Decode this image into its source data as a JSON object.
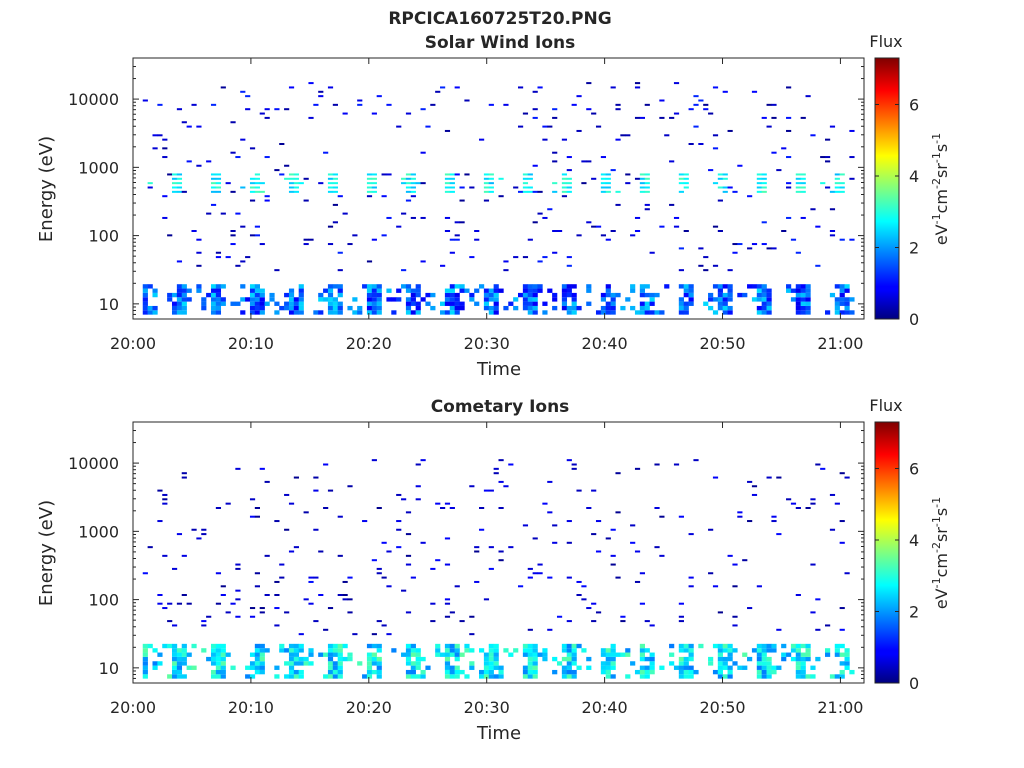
{
  "figure": {
    "title": "RPCICA160725T20.PNG"
  },
  "chart_data": [
    {
      "type": "heatmap",
      "title": "Solar Wind Ions",
      "xlabel": "Time",
      "ylabel": "Energy (eV)",
      "x_tick_labels": [
        "20:00",
        "20:10",
        "20:20",
        "20:30",
        "20:40",
        "20:50",
        "21:00"
      ],
      "x_tick_minutes": [
        0,
        10,
        20,
        30,
        40,
        50,
        60
      ],
      "xlim_minutes": [
        0,
        62
      ],
      "y_scale": "log",
      "y_tick_labels": [
        "10",
        "100",
        "1000",
        "10000"
      ],
      "y_tick_values": [
        10,
        100,
        1000,
        10000
      ],
      "ylim": [
        6,
        40000
      ],
      "colorbar": {
        "label": "Flux",
        "unit": "eV-1cm-2sr-1s-1",
        "range": [
          0,
          7.3
        ],
        "tick_labels": [
          "0",
          "2",
          "4",
          "6"
        ],
        "tick_values": [
          0,
          2,
          4,
          6
        ]
      },
      "bands": [
        {
          "name": "low_energy",
          "energy_range": [
            7,
            20
          ],
          "typical_flux": [
            0.8,
            2.5
          ]
        },
        {
          "name": "mid_energy",
          "energy_range": [
            420,
            820
          ],
          "typical_flux": [
            2.2,
            3.3
          ]
        },
        {
          "name": "sparse_background",
          "energy_range": [
            30,
            20000
          ],
          "typical_flux": [
            0.1,
            1.2
          ]
        }
      ]
    },
    {
      "type": "heatmap",
      "title": "Cometary Ions",
      "xlabel": "Time",
      "ylabel": "Energy (eV)",
      "x_tick_labels": [
        "20:00",
        "20:10",
        "20:20",
        "20:30",
        "20:40",
        "20:50",
        "21:00"
      ],
      "x_tick_minutes": [
        0,
        10,
        20,
        30,
        40,
        50,
        60
      ],
      "xlim_minutes": [
        0,
        62
      ],
      "y_scale": "log",
      "y_tick_labels": [
        "10",
        "100",
        "1000",
        "10000"
      ],
      "y_tick_values": [
        10,
        100,
        1000,
        10000
      ],
      "ylim": [
        6,
        40000
      ],
      "colorbar": {
        "label": "Flux",
        "unit": "eV-1cm-2sr-1s-1",
        "range": [
          0,
          7.3
        ],
        "tick_labels": [
          "0",
          "2",
          "4",
          "6"
        ],
        "tick_values": [
          0,
          2,
          4,
          6
        ]
      },
      "bands": [
        {
          "name": "low_energy",
          "energy_range": [
            7,
            22
          ],
          "typical_flux": [
            1.8,
            3.4
          ]
        },
        {
          "name": "sparse_background",
          "energy_range": [
            30,
            12000
          ],
          "typical_flux": [
            0.1,
            1.0
          ]
        }
      ]
    }
  ]
}
